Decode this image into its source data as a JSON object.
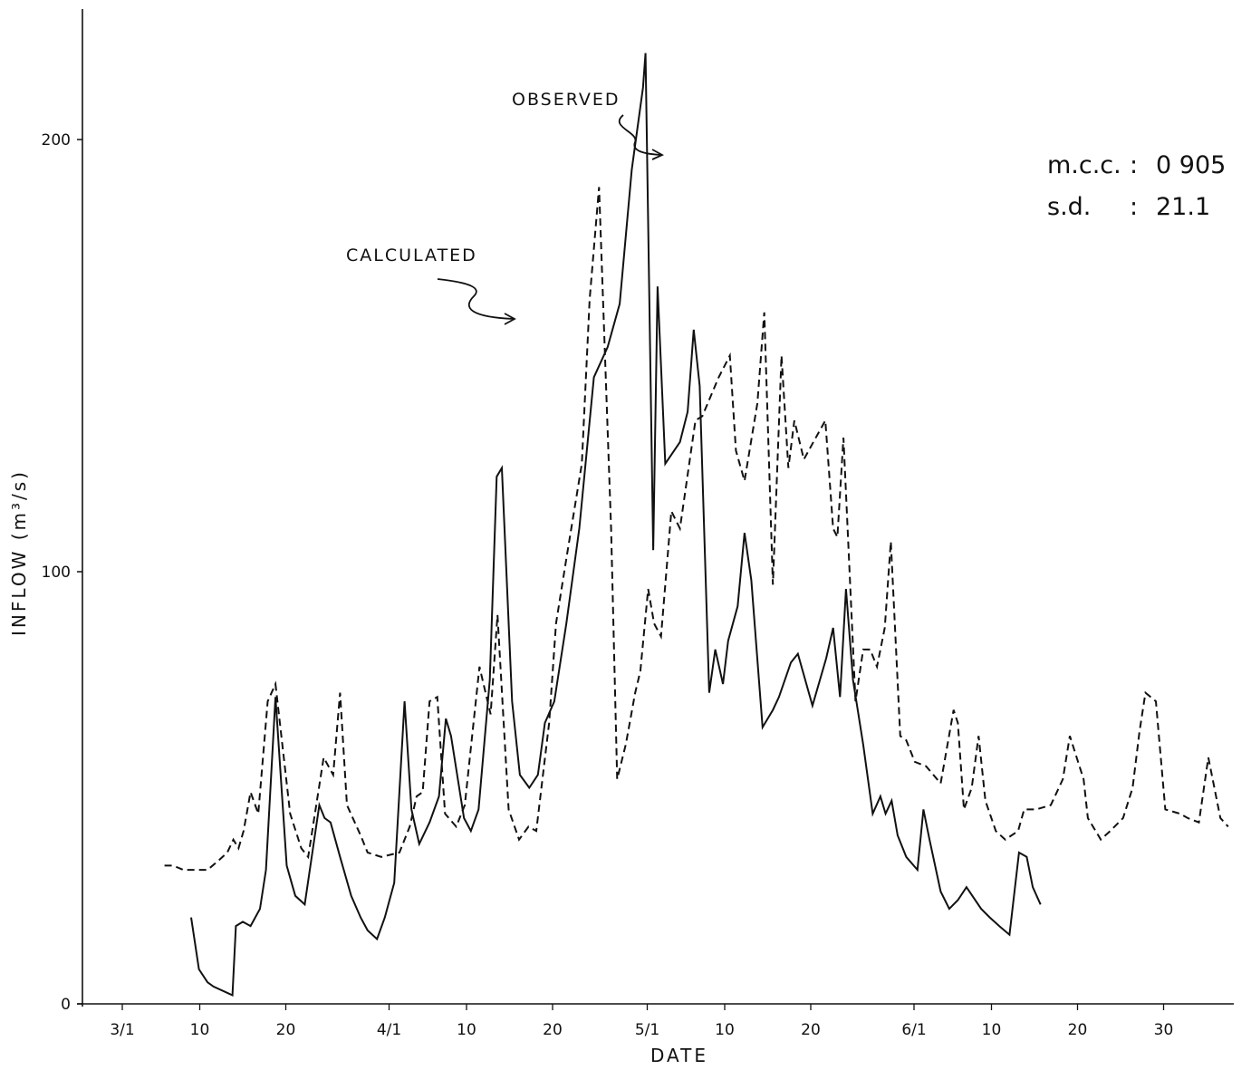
{
  "chart_data": {
    "type": "line",
    "xlabel": "DATE",
    "ylabel": "INFLOW (m³/s)",
    "ylim": [
      0,
      230
    ],
    "yticks": [
      0,
      100,
      200
    ],
    "x_range_days": [
      1,
      126
    ],
    "x_ticks": [
      {
        "label": "3/1",
        "day": 1
      },
      {
        "label": "10",
        "day": 10
      },
      {
        "label": "20",
        "day": 20
      },
      {
        "label": "4/1",
        "day": 32
      },
      {
        "label": "10",
        "day": 41
      },
      {
        "label": "20",
        "day": 51
      },
      {
        "label": "5/1",
        "day": 62
      },
      {
        "label": "10",
        "day": 71
      },
      {
        "label": "20",
        "day": 81
      },
      {
        "label": "6/1",
        "day": 93
      },
      {
        "label": "10",
        "day": 102
      },
      {
        "label": "20",
        "day": 112
      },
      {
        "label": "30",
        "day": 122
      }
    ],
    "grid": false,
    "annotations": {
      "observed_label": "OBSERVED",
      "calculated_label": "CALCULATED",
      "stat1_name": "m.c.c.",
      "stat1_value": "0 905",
      "stat2_name": "s.d.",
      "stat2_value": "21.1",
      "stat_separator": ":"
    },
    "series": [
      {
        "name": "OBSERVED",
        "style": "solid",
        "points": [
          [
            9,
            20
          ],
          [
            9.9,
            8
          ],
          [
            10.9,
            5
          ],
          [
            11.6,
            4
          ],
          [
            13.8,
            2
          ],
          [
            14.2,
            18
          ],
          [
            15,
            19
          ],
          [
            15.9,
            18
          ],
          [
            17,
            22
          ],
          [
            17.7,
            31
          ],
          [
            18.8,
            71
          ],
          [
            20.1,
            32
          ],
          [
            21.1,
            25
          ],
          [
            22.2,
            23
          ],
          [
            23.9,
            46
          ],
          [
            24.5,
            43
          ],
          [
            25.2,
            42
          ],
          [
            26.3,
            34
          ],
          [
            27.6,
            25
          ],
          [
            28.7,
            20
          ],
          [
            29.5,
            17
          ],
          [
            30.6,
            15
          ],
          [
            31.5,
            20
          ],
          [
            32.6,
            28
          ],
          [
            33.8,
            70
          ],
          [
            34.6,
            45
          ],
          [
            35.5,
            37
          ],
          [
            36.7,
            42
          ],
          [
            37.8,
            48
          ],
          [
            38.6,
            66
          ],
          [
            39.2,
            62
          ],
          [
            40.7,
            43
          ],
          [
            41.5,
            40
          ],
          [
            42.4,
            45
          ],
          [
            43.7,
            75
          ],
          [
            44.5,
            122
          ],
          [
            45.1,
            124
          ],
          [
            46.3,
            70
          ],
          [
            47.2,
            53
          ],
          [
            48.3,
            50
          ],
          [
            49.3,
            53
          ],
          [
            50.1,
            65
          ],
          [
            51.2,
            70
          ],
          [
            52.6,
            88
          ],
          [
            54.1,
            110
          ],
          [
            55.8,
            145
          ],
          [
            57.4,
            152
          ],
          [
            58.8,
            162
          ],
          [
            60.2,
            193
          ],
          [
            61.5,
            212
          ],
          [
            61.8,
            220
          ],
          [
            62.7,
            105
          ],
          [
            63.2,
            166
          ],
          [
            64.1,
            125
          ],
          [
            65.8,
            130
          ],
          [
            66.7,
            137
          ],
          [
            67.4,
            156
          ],
          [
            68.1,
            143
          ],
          [
            69.2,
            72
          ],
          [
            69.9,
            82
          ],
          [
            70.8,
            74
          ],
          [
            71.4,
            84
          ],
          [
            72.5,
            92
          ],
          [
            73.3,
            109
          ],
          [
            74.1,
            98
          ],
          [
            75.4,
            64
          ],
          [
            76.6,
            68
          ],
          [
            77.3,
            71
          ],
          [
            78.7,
            79
          ],
          [
            79.5,
            81
          ],
          [
            81.2,
            69
          ],
          [
            82.8,
            80
          ],
          [
            83.6,
            87
          ],
          [
            84.4,
            71
          ],
          [
            85.1,
            96
          ],
          [
            85.9,
            75
          ],
          [
            87.1,
            60
          ],
          [
            88.2,
            44
          ],
          [
            89.1,
            48
          ],
          [
            89.7,
            44
          ],
          [
            90.4,
            47
          ],
          [
            91.1,
            39
          ],
          [
            92.1,
            34
          ],
          [
            93.4,
            31
          ],
          [
            94.1,
            45
          ],
          [
            94.8,
            38
          ],
          [
            96.1,
            26
          ],
          [
            97.1,
            22
          ],
          [
            98.1,
            24
          ],
          [
            99.1,
            27
          ],
          [
            100.8,
            22
          ],
          [
            101.8,
            20
          ],
          [
            102.9,
            18
          ],
          [
            104.1,
            16
          ],
          [
            105.2,
            35
          ],
          [
            106.1,
            34
          ],
          [
            106.8,
            27
          ],
          [
            107.7,
            23
          ]
        ]
      },
      {
        "name": "CALCULATED",
        "style": "dashed",
        "points": [
          [
            5.9,
            32
          ],
          [
            6.9,
            32
          ],
          [
            8.1,
            31
          ],
          [
            9.1,
            31
          ],
          [
            10.9,
            31
          ],
          [
            12.1,
            33
          ],
          [
            13.2,
            35
          ],
          [
            13.9,
            38
          ],
          [
            14.5,
            36
          ],
          [
            15.1,
            40
          ],
          [
            15.9,
            49
          ],
          [
            16.8,
            44
          ],
          [
            17.9,
            70
          ],
          [
            18.8,
            74
          ],
          [
            20.5,
            44
          ],
          [
            21.8,
            36
          ],
          [
            22.6,
            34
          ],
          [
            23.3,
            43
          ],
          [
            24.4,
            57
          ],
          [
            25.5,
            53
          ],
          [
            26.3,
            72
          ],
          [
            27.1,
            46
          ],
          [
            28.7,
            39
          ],
          [
            29.5,
            35
          ],
          [
            31.1,
            34
          ],
          [
            33.2,
            35
          ],
          [
            34.4,
            41
          ],
          [
            35.2,
            48
          ],
          [
            35.9,
            49
          ],
          [
            36.7,
            70
          ],
          [
            37.6,
            71
          ],
          [
            38.5,
            44
          ],
          [
            39.8,
            41
          ],
          [
            40.8,
            46
          ],
          [
            42.5,
            78
          ],
          [
            43.8,
            67
          ],
          [
            44.6,
            90
          ],
          [
            45.9,
            45
          ],
          [
            47.1,
            38
          ],
          [
            48.2,
            41
          ],
          [
            49.1,
            40
          ],
          [
            50.6,
            65
          ],
          [
            51.4,
            88
          ],
          [
            52.6,
            103
          ],
          [
            54.4,
            125
          ],
          [
            55.3,
            163
          ],
          [
            56.4,
            189
          ],
          [
            57.8,
            110
          ],
          [
            58.5,
            52
          ],
          [
            59.5,
            60
          ],
          [
            60.6,
            72
          ],
          [
            61.2,
            77
          ],
          [
            62.1,
            96
          ],
          [
            62.8,
            88
          ],
          [
            63.6,
            85
          ],
          [
            64.8,
            114
          ],
          [
            65.8,
            110
          ],
          [
            67.6,
            135
          ],
          [
            68.4,
            136
          ],
          [
            70.3,
            145
          ],
          [
            71.6,
            150
          ],
          [
            72.3,
            128
          ],
          [
            73.3,
            121
          ],
          [
            74.8,
            139
          ],
          [
            75.6,
            160
          ],
          [
            76.6,
            97
          ],
          [
            77.6,
            150
          ],
          [
            78.4,
            124
          ],
          [
            79.1,
            135
          ],
          [
            80.2,
            126
          ],
          [
            81.3,
            130
          ],
          [
            82.7,
            135
          ],
          [
            83.6,
            110
          ],
          [
            84.1,
            108
          ],
          [
            84.8,
            131
          ],
          [
            86.2,
            70
          ],
          [
            87.1,
            82
          ],
          [
            87.9,
            82
          ],
          [
            88.7,
            78
          ],
          [
            89.6,
            87
          ],
          [
            90.3,
            107
          ],
          [
            91.4,
            62
          ],
          [
            92.1,
            61
          ],
          [
            93.1,
            56
          ],
          [
            94.4,
            55
          ],
          [
            96.1,
            51
          ],
          [
            97.6,
            68
          ],
          [
            98.1,
            65
          ],
          [
            98.8,
            45
          ],
          [
            99.7,
            50
          ],
          [
            100.5,
            62
          ],
          [
            101.3,
            47
          ],
          [
            102.5,
            40
          ],
          [
            103.6,
            38
          ],
          [
            105.1,
            40
          ],
          [
            105.8,
            45
          ],
          [
            107.2,
            45
          ],
          [
            108.9,
            46
          ],
          [
            110.3,
            52
          ],
          [
            111.1,
            62
          ],
          [
            112.7,
            52
          ],
          [
            113.2,
            43
          ],
          [
            114.7,
            38
          ],
          [
            115.8,
            40
          ],
          [
            117.3,
            43
          ],
          [
            118.4,
            50
          ],
          [
            119.2,
            63
          ],
          [
            119.9,
            72
          ],
          [
            121.1,
            70
          ],
          [
            122.2,
            45
          ],
          [
            123.9,
            44
          ],
          [
            124.8,
            43
          ],
          [
            126.1,
            42
          ],
          [
            127.2,
            57
          ],
          [
            128.6,
            43
          ],
          [
            129.5,
            41
          ]
        ]
      }
    ]
  }
}
